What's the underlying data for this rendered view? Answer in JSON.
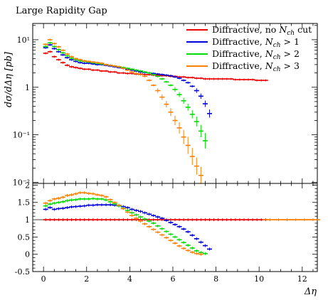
{
  "chart_data": {
    "type": "scatter",
    "title": "Large Rapidity Gap",
    "xlabel": "Δη",
    "ylabel": "dσ/dΔη [pb]",
    "xlim": [
      -0.5,
      12.7
    ],
    "ylim": [
      0.0095,
      22
    ],
    "yscale": "log",
    "ratio_ylim": [
      -0.5,
      2.05
    ],
    "x_ticks": [
      "0",
      "2",
      "4",
      "6",
      "8",
      "10",
      "12"
    ],
    "y_ticks": [
      "10⁻²",
      "10⁻¹",
      "1",
      "10¹"
    ],
    "ratio_ticks": [
      "-0.5",
      "0",
      "0.5",
      "1",
      "1.5",
      "2"
    ],
    "legend_position": "top-right",
    "series": [
      {
        "name": "Diffractive, no Nch cut",
        "label_main": "Diffractive, no ",
        "label_var": "N",
        "label_sub": "ch",
        "label_suffix": " cut",
        "color": "#ee0000",
        "x": [
          0.1,
          0.3,
          0.5,
          0.7,
          0.9,
          1.1,
          1.3,
          1.5,
          1.7,
          1.9,
          2.1,
          2.3,
          2.5,
          2.7,
          2.9,
          3.1,
          3.3,
          3.5,
          3.7,
          3.9,
          4.1,
          4.3,
          4.5,
          4.7,
          4.9,
          5.1,
          5.3,
          5.5,
          5.7,
          5.9,
          6.1,
          6.3,
          6.5,
          6.7,
          6.9,
          7.1,
          7.3,
          7.5,
          7.7,
          7.9,
          8.1,
          8.3,
          8.5,
          8.7,
          8.9,
          9.1,
          9.3,
          9.5,
          9.7,
          9.9,
          10.1,
          10.3
        ],
        "y": [
          5.2,
          5.6,
          4.4,
          3.8,
          3.3,
          2.9,
          2.7,
          2.6,
          2.5,
          2.4,
          2.4,
          2.3,
          2.3,
          2.2,
          2.2,
          2.1,
          2.1,
          2.0,
          2.0,
          1.95,
          1.95,
          1.9,
          1.9,
          1.85,
          1.85,
          1.8,
          1.8,
          1.75,
          1.75,
          1.7,
          1.7,
          1.65,
          1.65,
          1.6,
          1.6,
          1.55,
          1.55,
          1.5,
          1.5,
          1.5,
          1.5,
          1.5,
          1.5,
          1.5,
          1.45,
          1.45,
          1.45,
          1.45,
          1.45,
          1.4,
          1.4,
          1.4
        ],
        "ratio": [
          1,
          1,
          1,
          1,
          1,
          1,
          1,
          1,
          1,
          1,
          1,
          1,
          1,
          1,
          1,
          1,
          1,
          1,
          1,
          1,
          1,
          1,
          1,
          1,
          1,
          1,
          1,
          1,
          1,
          1,
          1,
          1,
          1,
          1,
          1,
          1,
          1,
          1,
          1,
          1,
          1,
          1,
          1,
          1,
          1,
          1,
          1,
          1,
          1,
          1,
          1,
          1
        ]
      },
      {
        "name": "Diffractive, Nch > 1",
        "label_main": "Diffractive, ",
        "label_var": "N",
        "label_sub": "ch",
        "label_suffix": " > 1",
        "color": "#0000dd",
        "x": [
          0.1,
          0.3,
          0.5,
          0.7,
          0.9,
          1.1,
          1.3,
          1.5,
          1.7,
          1.9,
          2.1,
          2.3,
          2.5,
          2.7,
          2.9,
          3.1,
          3.3,
          3.5,
          3.7,
          3.9,
          4.1,
          4.3,
          4.5,
          4.7,
          4.9,
          5.1,
          5.3,
          5.5,
          5.7,
          5.9,
          6.1,
          6.3,
          6.5,
          6.7,
          6.9,
          7.1,
          7.3,
          7.5,
          7.7
        ],
        "y": [
          6.8,
          7.8,
          6.5,
          5.6,
          4.8,
          4.2,
          3.8,
          3.5,
          3.3,
          3.2,
          3.2,
          3.1,
          3.0,
          3.0,
          2.9,
          2.8,
          2.7,
          2.6,
          2.5,
          2.4,
          2.3,
          2.2,
          2.1,
          2.05,
          2.0,
          1.95,
          1.9,
          1.85,
          1.8,
          1.75,
          1.65,
          1.55,
          1.4,
          1.25,
          1.05,
          0.85,
          0.65,
          0.45,
          0.28
        ],
        "ratio": [
          1.3,
          1.35,
          1.3,
          1.32,
          1.33,
          1.35,
          1.37,
          1.38,
          1.39,
          1.4,
          1.42,
          1.42,
          1.43,
          1.43,
          1.43,
          1.43,
          1.42,
          1.4,
          1.38,
          1.35,
          1.3,
          1.27,
          1.24,
          1.2,
          1.16,
          1.12,
          1.08,
          1.04,
          0.98,
          0.92,
          0.86,
          0.8,
          0.73,
          0.65,
          0.55,
          0.45,
          0.35,
          0.25,
          0.15
        ]
      },
      {
        "name": "Diffractive, Nch > 2",
        "label_main": "Diffractive, ",
        "label_var": "N",
        "label_sub": "ch",
        "label_suffix": " > 2",
        "color": "#00dd00",
        "x": [
          0.1,
          0.3,
          0.5,
          0.7,
          0.9,
          1.1,
          1.3,
          1.5,
          1.7,
          1.9,
          2.1,
          2.3,
          2.5,
          2.7,
          2.9,
          3.1,
          3.3,
          3.5,
          3.7,
          3.9,
          4.1,
          4.3,
          4.5,
          4.7,
          4.9,
          5.1,
          5.3,
          5.5,
          5.7,
          5.9,
          6.1,
          6.3,
          6.5,
          6.7,
          6.9,
          7.1,
          7.3,
          7.5
        ],
        "y": [
          7.2,
          8.6,
          7.2,
          6.2,
          5.3,
          4.6,
          4.1,
          3.8,
          3.6,
          3.5,
          3.4,
          3.3,
          3.2,
          3.1,
          3.0,
          2.9,
          2.8,
          2.7,
          2.6,
          2.5,
          2.4,
          2.3,
          2.2,
          2.1,
          2.0,
          1.85,
          1.7,
          1.5,
          1.3,
          1.1,
          0.9,
          0.7,
          0.52,
          0.38,
          0.27,
          0.19,
          0.12,
          0.075
        ],
        "ratio": [
          1.4,
          1.45,
          1.48,
          1.5,
          1.52,
          1.55,
          1.57,
          1.58,
          1.6,
          1.6,
          1.6,
          1.61,
          1.6,
          1.6,
          1.57,
          1.52,
          1.46,
          1.4,
          1.33,
          1.27,
          1.2,
          1.14,
          1.08,
          1.02,
          0.96,
          0.9,
          0.82,
          0.74,
          0.66,
          0.58,
          0.5,
          0.42,
          0.34,
          0.26,
          0.18,
          0.1,
          0.05,
          0.02
        ]
      },
      {
        "name": "Diffractive, Nch > 3",
        "label_main": "Diffractive, ",
        "label_var": "N",
        "label_sub": "ch",
        "label_suffix": " > 3",
        "color": "#ff7f00",
        "x": [
          0.1,
          0.3,
          0.5,
          0.7,
          0.9,
          1.1,
          1.3,
          1.5,
          1.7,
          1.9,
          2.1,
          2.3,
          2.5,
          2.7,
          2.9,
          3.1,
          3.3,
          3.5,
          3.7,
          3.9,
          4.1,
          4.3,
          4.5,
          4.7,
          4.9,
          5.1,
          5.3,
          5.5,
          5.7,
          5.9,
          6.1,
          6.3,
          6.5,
          6.7,
          6.9,
          7.1,
          7.3,
          10.5,
          10.9,
          11.3,
          11.7,
          12.1,
          12.5
        ],
        "y": [
          8.0,
          10.0,
          8.3,
          7.1,
          6.0,
          5.0,
          4.4,
          4.0,
          3.8,
          3.6,
          3.5,
          3.4,
          3.3,
          3.2,
          3.0,
          2.9,
          2.8,
          2.7,
          2.5,
          2.3,
          2.1,
          1.95,
          1.85,
          1.7,
          1.4,
          1.1,
          0.85,
          0.62,
          0.44,
          0.3,
          0.2,
          0.14,
          0.09,
          0.06,
          0.035,
          0.022,
          0.014,
          null,
          null,
          null,
          null,
          null,
          null
        ],
        "ratio": [
          1.48,
          1.55,
          1.6,
          1.62,
          1.65,
          1.7,
          1.72,
          1.75,
          1.78,
          1.78,
          1.76,
          1.75,
          1.72,
          1.7,
          1.66,
          1.58,
          1.5,
          1.42,
          1.32,
          1.22,
          1.12,
          1.04,
          0.96,
          0.88,
          0.8,
          0.72,
          0.64,
          0.56,
          0.48,
          0.4,
          0.32,
          0.24,
          0.17,
          0.11,
          0.06,
          0.02,
          0.0,
          1,
          1,
          1,
          1,
          1,
          1
        ]
      }
    ]
  }
}
